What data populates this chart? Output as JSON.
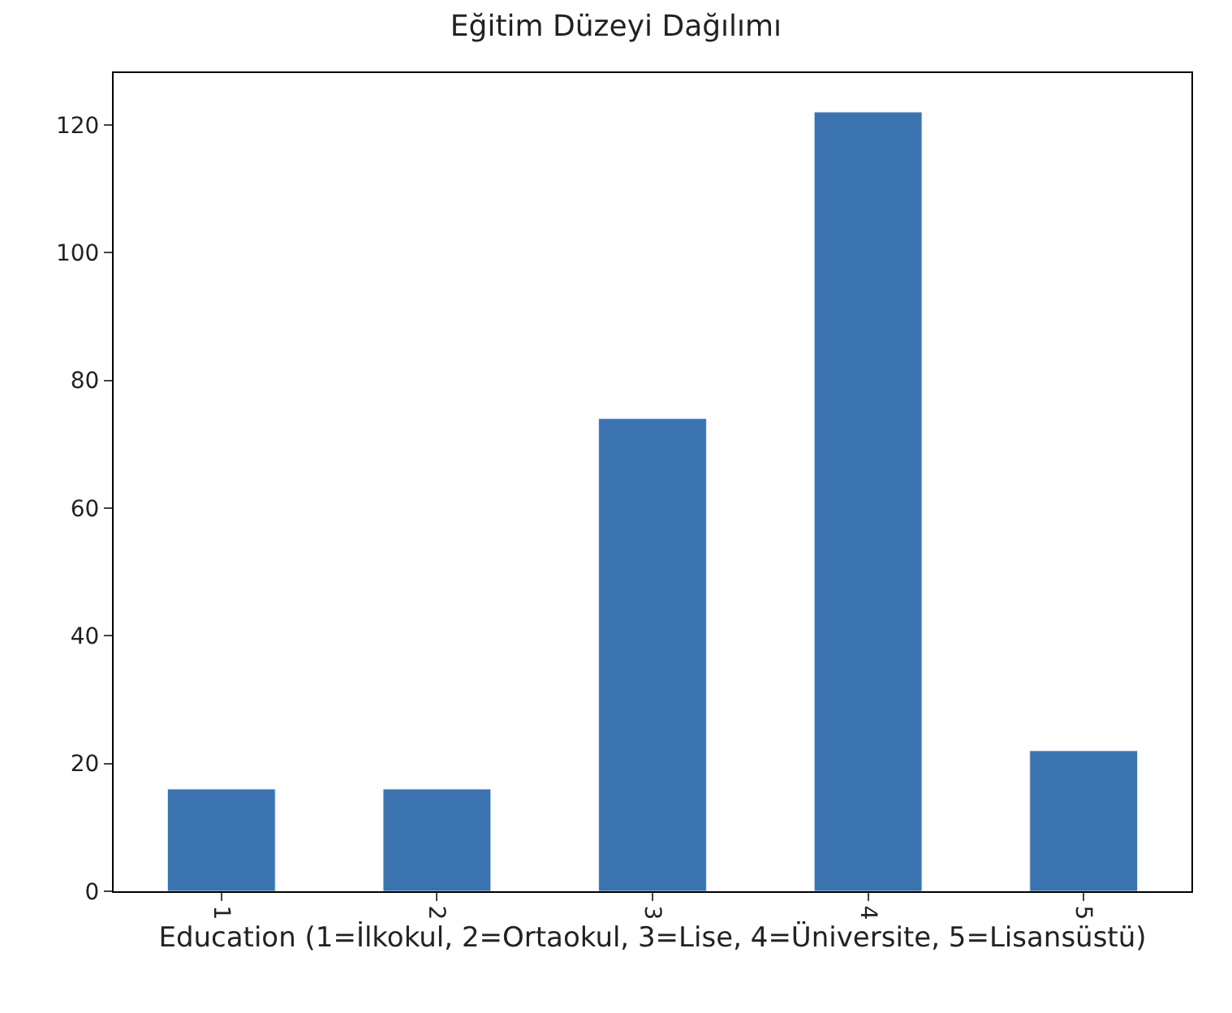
{
  "chart_data": {
    "type": "bar",
    "title": "Eğitim Düzeyi Dağılımı",
    "xlabel": "Education (1=İlkokul, 2=Ortaokul, 3=Lise, 4=Üniversite, 5=Lisansüstü)",
    "categories": [
      "1",
      "2",
      "3",
      "4",
      "5"
    ],
    "values": [
      16,
      16,
      74,
      122,
      22
    ],
    "color": "#3a73b0",
    "ylim": [
      0,
      128.1
    ],
    "yticks": [
      0,
      20,
      40,
      60,
      80,
      100,
      120
    ]
  }
}
